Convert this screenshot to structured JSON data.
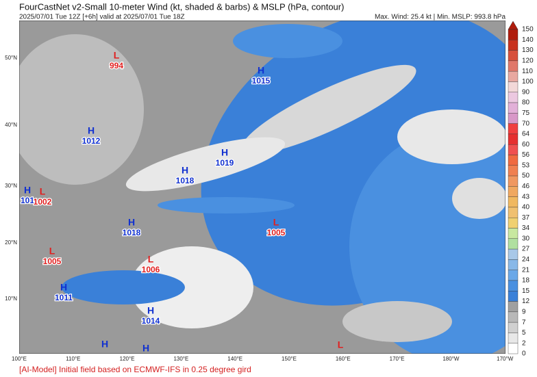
{
  "header": {
    "title": "FourCastNet v2-Small 10-meter Wind (kt, shaded & barbs) & MSLP (hPa, contour)",
    "subtitle": "2025/07/01 Tue 12Z [+6h] valid at 2025/07/01 Tue 18Z",
    "stats": "Max. Wind: 25.4 kt | Min. MSLP: 993.8 hPa"
  },
  "map": {
    "lat_labels": [
      "50°N",
      "40°N",
      "30°N",
      "20°N",
      "10°N"
    ],
    "lon_labels": [
      "100°E",
      "110°E",
      "120°E",
      "130°E",
      "140°E",
      "150°E",
      "160°E",
      "170°E",
      "180°W",
      "170°W"
    ],
    "pressure_centers": [
      {
        "letter": "L",
        "value": "994"
      },
      {
        "letter": "H",
        "value": "1015"
      },
      {
        "letter": "H",
        "value": "1012"
      },
      {
        "letter": "H",
        "value": "1019"
      },
      {
        "letter": "H",
        "value": "1018"
      },
      {
        "letter": "H",
        "value": "101"
      },
      {
        "letter": "L",
        "value": "1002"
      },
      {
        "letter": "H",
        "value": "1018"
      },
      {
        "letter": "L",
        "value": "1005"
      },
      {
        "letter": "L",
        "value": "1005"
      },
      {
        "letter": "L",
        "value": "1006"
      },
      {
        "letter": "H",
        "value": "1011"
      },
      {
        "letter": "H",
        "value": "1014"
      },
      {
        "letter": "H"
      },
      {
        "letter": "H"
      },
      {
        "letter": "L"
      }
    ]
  },
  "colorbar": {
    "labels": [
      150,
      140,
      130,
      120,
      110,
      100,
      90,
      80,
      75,
      70,
      64,
      60,
      56,
      53,
      50,
      46,
      43,
      40,
      37,
      34,
      30,
      27,
      24,
      21,
      18,
      15,
      12,
      9,
      7,
      5,
      2,
      0
    ],
    "colors": [
      "#b01c0c",
      "#c8321e",
      "#d7503c",
      "#e0786a",
      "#e8a8a0",
      "#f2d8d8",
      "#ecc8e0",
      "#e2b0d8",
      "#d898c8",
      "#f04040",
      "#e63030",
      "#f05050",
      "#f06a40",
      "#f08050",
      "#f09860",
      "#f0a860",
      "#f0b860",
      "#f0c070",
      "#f0d070",
      "#c8e8a0",
      "#b0e0a0",
      "#a8c8e8",
      "#88b8e8",
      "#6aa8e8",
      "#4a90e0",
      "#3a80d8",
      "#a0a0a0",
      "#b8b8b8",
      "#d0d0d0",
      "#e8e8e8",
      "#ffffff"
    ]
  },
  "footer": "[AI-Model] Initial field based on ECMWF-IFS in 0.25 degree gird"
}
